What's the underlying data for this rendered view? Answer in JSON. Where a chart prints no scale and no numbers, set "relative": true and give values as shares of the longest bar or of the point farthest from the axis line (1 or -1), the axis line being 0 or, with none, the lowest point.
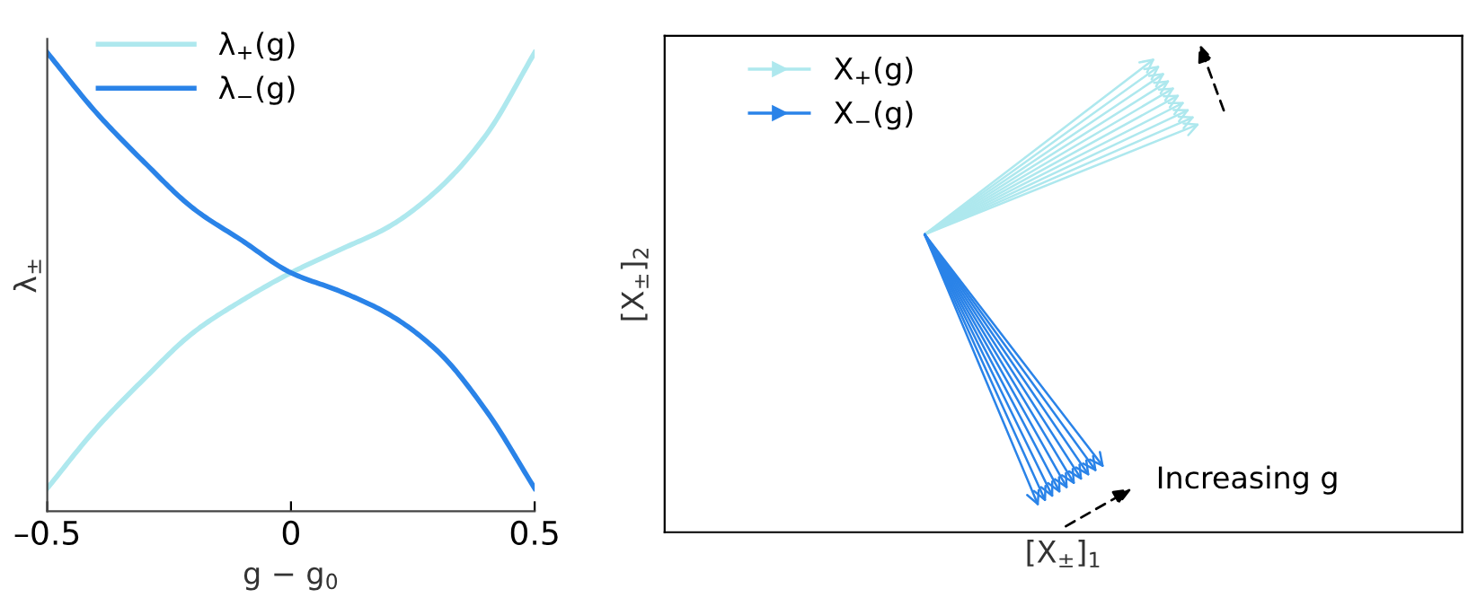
{
  "chart_data": [
    {
      "type": "line",
      "relative": true,
      "xlabel": "g − g$_{0}$",
      "ylabel": "λ$_{±}$",
      "x": [
        -0.5,
        -0.4,
        -0.3,
        -0.2,
        -0.1,
        0,
        0.1,
        0.2,
        0.3,
        0.4,
        0.5
      ],
      "xlim": [
        -0.5,
        0.5
      ],
      "xticks": [
        {
          "value": -0.5,
          "label": "–0.5"
        },
        0,
        0.5
      ],
      "legend": "top left",
      "grid": false,
      "series": [
        {
          "name": "λ$_{+}$(g)",
          "color": "#aee8ee",
          "values": [
            0.05,
            0.18,
            0.29,
            0.39,
            0.46,
            0.52,
            0.57,
            0.62,
            0.7,
            0.82,
            1.0
          ]
        },
        {
          "name": "λ$_{−}$(g)",
          "color": "#2a83e8",
          "values": [
            1.0,
            0.87,
            0.76,
            0.66,
            0.59,
            0.52,
            0.48,
            0.43,
            0.35,
            0.22,
            0.05
          ]
        }
      ]
    },
    {
      "type": "other",
      "xlabel": "[X$_{±}$]$_{1}$",
      "ylabel": "[X$_{±}$]$_{2}$",
      "legend": "top left",
      "annotations": [
        "Increasing g"
      ],
      "series": [
        {
          "name": "X$_{+}$(g)",
          "color": "#aee8ee"
        },
        {
          "name": "X$_{−}$(g)",
          "color": "#2a83e8"
        }
      ]
    }
  ]
}
